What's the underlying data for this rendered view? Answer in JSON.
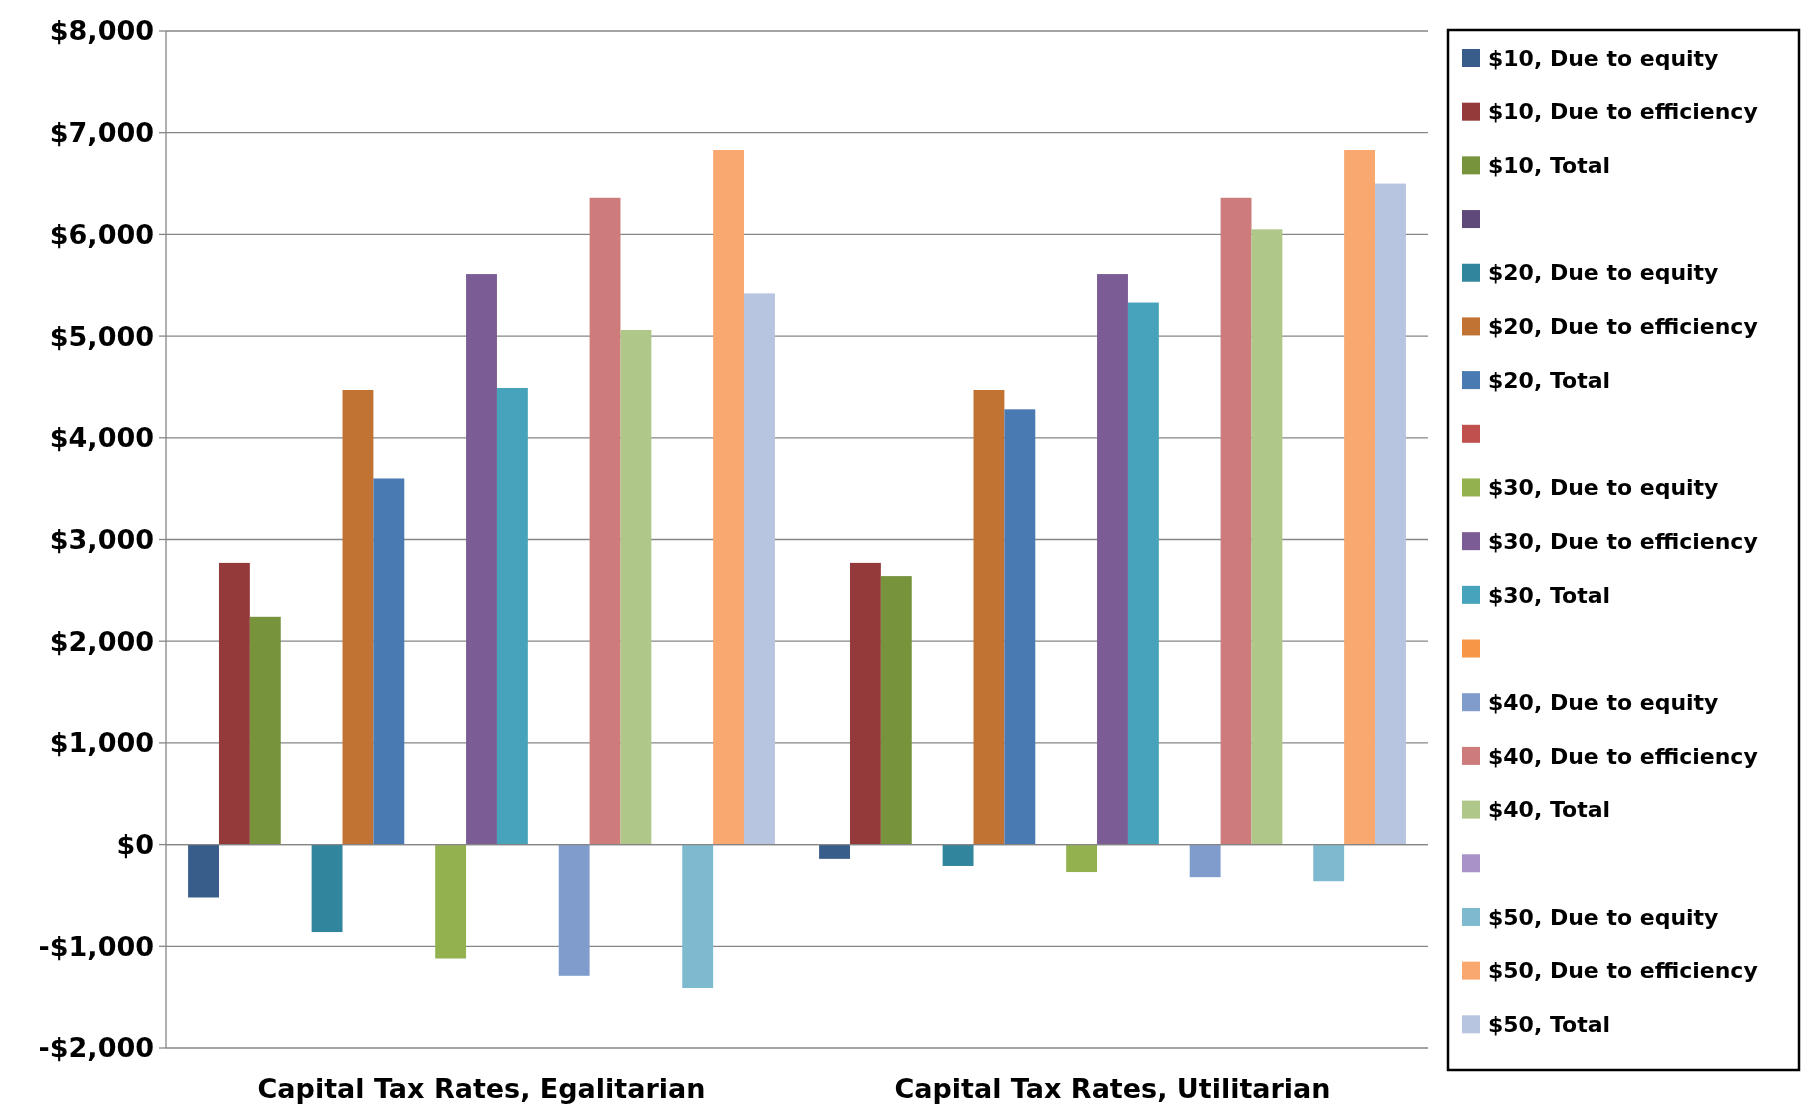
{
  "chart_data": {
    "type": "bar",
    "categories": [
      "Capital Tax Rates, Egalitarian",
      "Capital Tax Rates, Utilitarian"
    ],
    "ylim": [
      -2000,
      8000
    ],
    "yticks": [
      {
        "value": -2000,
        "label": "-$2,000"
      },
      {
        "value": -1000,
        "label": "-$1,000"
      },
      {
        "value": 0,
        "label": "$0"
      },
      {
        "value": 1000,
        "label": "$1,000"
      },
      {
        "value": 2000,
        "label": "$2,000"
      },
      {
        "value": 3000,
        "label": "$3,000"
      },
      {
        "value": 4000,
        "label": "$4,000"
      },
      {
        "value": 5000,
        "label": "$5,000"
      },
      {
        "value": 6000,
        "label": "$6,000"
      },
      {
        "value": 7000,
        "label": "$7,000"
      },
      {
        "value": 8000,
        "label": "$8,000"
      }
    ],
    "grid": "y",
    "legend": "right",
    "series": [
      {
        "name": "$10, Due to equity",
        "color": "#385d8a",
        "values": [
          -520,
          -140
        ]
      },
      {
        "name": "$10, Due to efficiency",
        "color": "#953a3a",
        "values": [
          2770,
          2770
        ]
      },
      {
        "name": "$10, Total",
        "color": "#77933c",
        "values": [
          2240,
          2640
        ]
      },
      {
        "color": "#5f497a",
        "values": [
          null,
          null
        ]
      },
      {
        "name": "$20, Due to equity",
        "color": "#31859c",
        "values": [
          -860,
          -210
        ]
      },
      {
        "name": "$20, Due to efficiency",
        "color": "#c07333",
        "values": [
          4470,
          4470
        ]
      },
      {
        "name": "$20, Total",
        "color": "#4a7ab2",
        "values": [
          3600,
          4280
        ]
      },
      {
        "color": "#c0504d",
        "values": [
          null,
          null
        ]
      },
      {
        "name": "$30, Due to equity",
        "color": "#93b24f",
        "values": [
          -1120,
          -270
        ]
      },
      {
        "name": "$30, Due to efficiency",
        "color": "#7b5c95",
        "values": [
          5610,
          5610
        ]
      },
      {
        "name": "$30, Total",
        "color": "#46a3bb",
        "values": [
          4490,
          5330
        ]
      },
      {
        "color": "#f79646",
        "values": [
          null,
          null
        ]
      },
      {
        "name": "$40, Due to equity",
        "color": "#7f9ccd",
        "values": [
          -1290,
          -320
        ]
      },
      {
        "name": "$40, Due to efficiency",
        "color": "#cd7b7b",
        "values": [
          6360,
          6360
        ]
      },
      {
        "name": "$40, Total",
        "color": "#afc889",
        "values": [
          5060,
          6050
        ]
      },
      {
        "color": "#a992c8",
        "values": [
          null,
          null
        ]
      },
      {
        "name": "$50, Due to equity",
        "color": "#7dbad0",
        "values": [
          -1410,
          -360
        ]
      },
      {
        "name": "$50, Due to efficiency",
        "color": "#f9a870",
        "values": [
          6830,
          6830
        ]
      },
      {
        "name": "$50, Total",
        "color": "#b8c5e0",
        "values": [
          5420,
          6500
        ]
      }
    ]
  }
}
